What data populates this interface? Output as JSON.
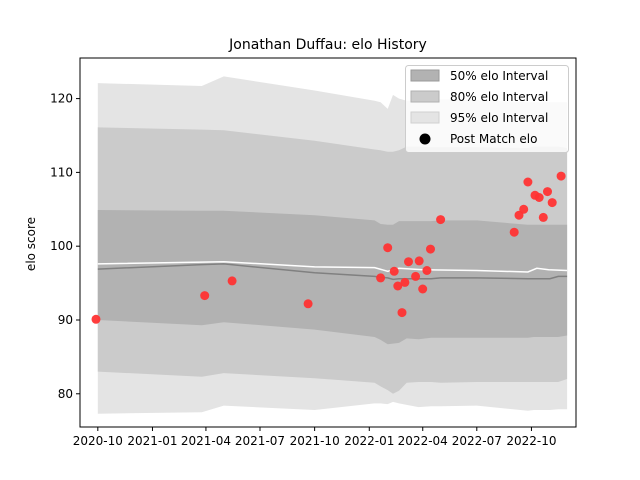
{
  "chart_data": {
    "type": "line",
    "title": "Jonathan Duffau: elo History",
    "xlabel": "",
    "ylabel": "elo score",
    "xlim": [
      "2020-09-01",
      "2022-12-15"
    ],
    "ylim": [
      75.5,
      125.5
    ],
    "x_ticks": [
      "2020-10",
      "2021-01",
      "2021-04",
      "2021-07",
      "2021-10",
      "2022-01",
      "2022-04",
      "2022-07",
      "2022-10"
    ],
    "y_ticks": [
      80,
      90,
      100,
      110,
      120
    ],
    "grid": false,
    "legend_placement": "top-right",
    "legend": [
      "50% elo Interval",
      "80% elo Interval",
      "95% elo Interval",
      "Post Match elo"
    ],
    "colors": {
      "band50": "#b2b2b2",
      "band80": "#cbcbcb",
      "band95": "#e4e4e4",
      "mean_line": "#808080",
      "post_match_line": "#ffffff",
      "points": "#ff3333"
    },
    "bands": {
      "x": [
        "2020-10-01",
        "2021-03-25",
        "2021-05-01",
        "2021-10-01",
        "2022-01-10",
        "2022-01-20",
        "2022-02-01",
        "2022-02-10",
        "2022-02-20",
        "2022-03-05",
        "2022-03-25",
        "2022-04-15",
        "2022-05-01",
        "2022-07-01",
        "2022-09-25",
        "2022-10-05",
        "2022-11-01",
        "2022-11-15",
        "2022-11-30"
      ],
      "mean": [
        96.9,
        97.5,
        97.6,
        96.4,
        95.9,
        95.8,
        95.7,
        95.5,
        95.6,
        95.6,
        95.6,
        95.6,
        95.7,
        95.7,
        95.6,
        95.6,
        95.6,
        95.9,
        95.9
      ],
      "p50": {
        "low": [
          90.0,
          89.3,
          89.7,
          88.7,
          87.7,
          87.3,
          86.7,
          86.8,
          86.9,
          87.5,
          87.4,
          87.6,
          87.6,
          87.6,
          87.6,
          87.7,
          87.7,
          87.7,
          87.9
        ],
        "high": [
          104.9,
          104.8,
          104.8,
          104.2,
          103.5,
          103.0,
          102.9,
          102.9,
          103.4,
          103.4,
          103.4,
          103.4,
          103.5,
          103.5,
          102.9,
          102.9,
          102.9,
          102.9,
          102.9
        ]
      },
      "p80": {
        "low": [
          83.0,
          82.3,
          82.8,
          82.1,
          81.5,
          81.0,
          80.5,
          80.0,
          80.4,
          81.5,
          81.6,
          81.6,
          81.5,
          81.6,
          81.6,
          81.6,
          81.6,
          81.6,
          82.0
        ],
        "high": [
          116.1,
          115.8,
          115.7,
          114.3,
          113.1,
          113.0,
          112.8,
          112.8,
          113.0,
          113.5,
          113.5,
          113.4,
          113.4,
          113.4,
          113.3,
          113.5,
          113.5,
          113.5,
          113.3
        ]
      },
      "p95": {
        "low": [
          77.3,
          77.5,
          78.4,
          77.8,
          78.7,
          78.7,
          78.6,
          78.9,
          78.7,
          78.5,
          78.2,
          78.3,
          78.3,
          78.4,
          77.7,
          77.8,
          77.8,
          77.9,
          77.9
        ],
        "high": [
          122.1,
          121.7,
          123.0,
          121.1,
          119.7,
          119.5,
          118.6,
          120.5,
          120.0,
          119.7,
          119.7,
          119.8,
          119.9,
          119.8,
          119.5,
          119.5,
          119.5,
          119.5,
          119.5
        ]
      }
    },
    "post_match_line": {
      "x": [
        "2020-10-01",
        "2021-05-01",
        "2021-10-01",
        "2022-01-10",
        "2022-02-01",
        "2022-02-20",
        "2022-04-01",
        "2022-07-01",
        "2022-09-25",
        "2022-10-10",
        "2022-10-30",
        "2022-11-30"
      ],
      "y": [
        97.6,
        97.9,
        97.2,
        97.1,
        96.6,
        97.0,
        96.8,
        96.7,
        96.5,
        97.0,
        96.8,
        96.7
      ]
    },
    "points": [
      {
        "x": "2020-09-28",
        "y": 90.1
      },
      {
        "x": "2021-03-30",
        "y": 93.3
      },
      {
        "x": "2021-05-15",
        "y": 95.3
      },
      {
        "x": "2021-09-20",
        "y": 92.2
      },
      {
        "x": "2022-01-20",
        "y": 95.7
      },
      {
        "x": "2022-02-01",
        "y": 99.8
      },
      {
        "x": "2022-02-12",
        "y": 96.6
      },
      {
        "x": "2022-02-18",
        "y": 94.6
      },
      {
        "x": "2022-02-25",
        "y": 91.0
      },
      {
        "x": "2022-03-02",
        "y": 95.1
      },
      {
        "x": "2022-03-08",
        "y": 97.9
      },
      {
        "x": "2022-03-20",
        "y": 95.9
      },
      {
        "x": "2022-03-26",
        "y": 98.0
      },
      {
        "x": "2022-04-01",
        "y": 94.2
      },
      {
        "x": "2022-04-08",
        "y": 96.7
      },
      {
        "x": "2022-04-14",
        "y": 99.6
      },
      {
        "x": "2022-05-01",
        "y": 103.6
      },
      {
        "x": "2022-09-02",
        "y": 101.9
      },
      {
        "x": "2022-09-10",
        "y": 104.2
      },
      {
        "x": "2022-09-18",
        "y": 105.0
      },
      {
        "x": "2022-09-25",
        "y": 108.7
      },
      {
        "x": "2022-10-07",
        "y": 106.9
      },
      {
        "x": "2022-10-14",
        "y": 106.6
      },
      {
        "x": "2022-10-21",
        "y": 103.9
      },
      {
        "x": "2022-10-28",
        "y": 107.4
      },
      {
        "x": "2022-11-05",
        "y": 105.9
      },
      {
        "x": "2022-11-20",
        "y": 109.5
      }
    ]
  }
}
